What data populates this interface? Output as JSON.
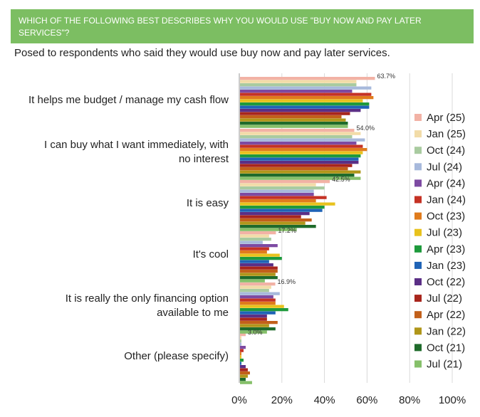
{
  "header": {
    "title": "WHICH OF THE FOLLOWING BEST DESCRIBES WHY YOU WOULD USE \"BUY NOW AND PAY LATER SERVICES\"?",
    "color": "#7cbe62"
  },
  "subtitle": "Posed to respondents who said they would use buy now and pay later services.",
  "chart_data": {
    "type": "bar",
    "orientation": "horizontal",
    "categories": [
      [
        "It helps me budget / manage my cash flow"
      ],
      [
        "I can buy what I want immediately, with",
        "no interest"
      ],
      [
        "It is easy"
      ],
      [
        "It's cool"
      ],
      [
        "It is really the only financing option",
        "available to me"
      ],
      [
        "Other (please specify)"
      ]
    ],
    "value_labels": [
      "63.7%",
      "54.0%",
      "42.5%",
      "17.2%",
      "16.9%",
      "3.0%"
    ],
    "xlim": [
      0,
      100
    ],
    "xticks": [
      0,
      20,
      40,
      60,
      80,
      100
    ],
    "xtick_labels": [
      "0%",
      "20%",
      "40%",
      "60%",
      "80%",
      "100%"
    ],
    "grid": true,
    "legend_position": "right",
    "series": [
      {
        "name": "Apr (25)",
        "color": "#f2b2a5",
        "values": [
          63.7,
          54.0,
          42.5,
          17.2,
          16.9,
          3.0
        ]
      },
      {
        "name": "Jan (25)",
        "color": "#f2dca8",
        "values": [
          55,
          57,
          36,
          14,
          15,
          1
        ]
      },
      {
        "name": "Oct (24)",
        "color": "#a9cba0",
        "values": [
          55,
          53,
          40,
          15,
          14,
          1
        ]
      },
      {
        "name": "Jul (24)",
        "color": "#a7b9dc",
        "values": [
          62,
          59,
          35,
          11,
          19,
          1
        ]
      },
      {
        "name": "Apr (24)",
        "color": "#7d4aa2",
        "values": [
          53,
          55,
          35,
          18,
          16,
          3
        ]
      },
      {
        "name": "Jan (24)",
        "color": "#c53224",
        "values": [
          62,
          58,
          41,
          14,
          17,
          2
        ]
      },
      {
        "name": "Oct (23)",
        "color": "#e07b1c",
        "values": [
          63,
          60,
          36,
          13,
          17,
          1
        ]
      },
      {
        "name": "Jul (23)",
        "color": "#e8c21d",
        "values": [
          58,
          58,
          45,
          19,
          21,
          1
        ]
      },
      {
        "name": "Apr (23)",
        "color": "#1e9a3c",
        "values": [
          61,
          57,
          40,
          20,
          23,
          2
        ]
      },
      {
        "name": "Jan (23)",
        "color": "#1f63b6",
        "values": [
          61,
          56,
          39,
          14,
          17,
          1
        ]
      },
      {
        "name": "Oct (22)",
        "color": "#5b2f86",
        "values": [
          57,
          56,
          33,
          16,
          13,
          3
        ]
      },
      {
        "name": "Jul (22)",
        "color": "#a8251c",
        "values": [
          52,
          53,
          29,
          18,
          13,
          4
        ]
      },
      {
        "name": "Apr (22)",
        "color": "#c2601a",
        "values": [
          48,
          51,
          34,
          18,
          18,
          5
        ]
      },
      {
        "name": "Jan (22)",
        "color": "#b0961a",
        "values": [
          50,
          57,
          31,
          17,
          14,
          4
        ]
      },
      {
        "name": "Oct (21)",
        "color": "#1f6b2b",
        "values": [
          51,
          54,
          36,
          18,
          17,
          3
        ]
      },
      {
        "name": "Jul (21)",
        "color": "#86c06a",
        "values": [
          51,
          57,
          27,
          12,
          13,
          6
        ]
      }
    ]
  }
}
